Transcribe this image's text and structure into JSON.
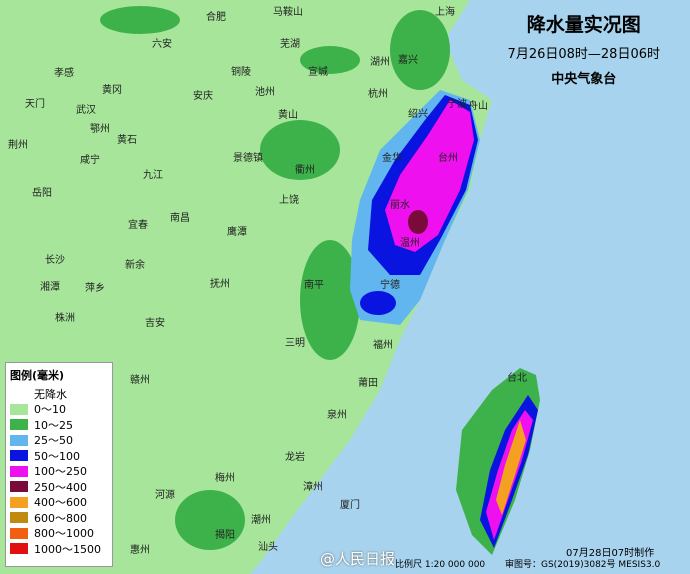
{
  "header": {
    "title": "降水量实况图",
    "subtitle": "7月26日08时—28日06时",
    "agency": "中央气象台"
  },
  "legend": {
    "title": "图例(毫米)",
    "items": [
      {
        "label": "无降水",
        "color": "#ffffff"
      },
      {
        "label": "0～10",
        "color": "#a6e59a"
      },
      {
        "label": "10～25",
        "color": "#3db24a"
      },
      {
        "label": "25～50",
        "color": "#62b6f0"
      },
      {
        "label": "50～100",
        "color": "#0a14e0"
      },
      {
        "label": "100～250",
        "color": "#ee10ee"
      },
      {
        "label": "250～400",
        "color": "#7a0a3a"
      },
      {
        "label": "400～600",
        "color": "#f4a020"
      },
      {
        "label": "600～800",
        "color": "#c08a10"
      },
      {
        "label": "800～1000",
        "color": "#f06010"
      },
      {
        "label": "1000～1500",
        "color": "#e01010"
      }
    ]
  },
  "cities": [
    "合肥",
    "马鞍山",
    "上海",
    "六安",
    "芜湖",
    "铜陵",
    "宣城",
    "湖州",
    "嘉兴",
    "孝感",
    "黄冈",
    "安庆",
    "池州",
    "杭州",
    "绍兴",
    "宁波",
    "舟山",
    "天门",
    "武汉",
    "荆州",
    "鄂州",
    "黄石",
    "黄山",
    "咸宁",
    "九江",
    "景德镇",
    "衢州",
    "金华",
    "台州",
    "岳阳",
    "南昌",
    "上饶",
    "丽水",
    "宜春",
    "鹰潭",
    "温州",
    "长沙",
    "新余",
    "抚州",
    "南平",
    "宁德",
    "湘潭",
    "萍乡",
    "株洲",
    "吉安",
    "三明",
    "福州",
    "莆田",
    "赣州",
    "泉州",
    "龙岩",
    "漳州",
    "厦门",
    "梅州",
    "河源",
    "潮州",
    "汕头",
    "惠州",
    "揭阳",
    "台北"
  ],
  "footer": {
    "made": "07月28日07时制作",
    "scale": "比例尺 1:20 000 000",
    "review": "审图号：GS(2019)3082号 MESIS3.0",
    "watermark": "@人民日报"
  }
}
